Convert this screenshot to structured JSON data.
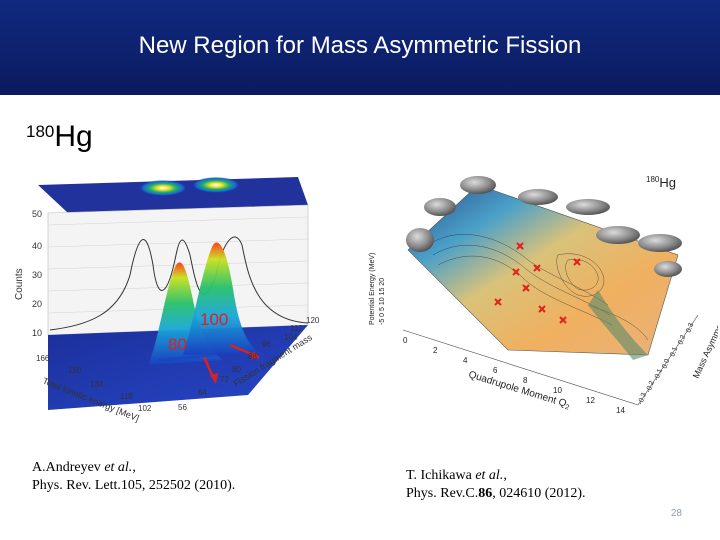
{
  "slide": {
    "title": "New Region for Mass Asymmetric Fission",
    "isotope_mass": "180",
    "isotope_symbol": "Hg",
    "page_number": "28"
  },
  "left_figure": {
    "yaxis_label": "Counts",
    "yaxis_ticks": [
      "50",
      "40",
      "30",
      "20",
      "10"
    ],
    "xaxis_label": "Total kinetic energy [MeV]",
    "xaxis_ticks": [
      "166",
      "150",
      "134",
      "118",
      "102"
    ],
    "mass_axis_label": "Fission fragment mass",
    "mass_ticks": [
      "120",
      "112",
      "104",
      "96",
      "88",
      "80",
      "72",
      "64",
      "56"
    ],
    "peak_label_100": "100",
    "peak_label_80": "80",
    "colors": {
      "arrow": "#e0201b",
      "label": "#e0201b"
    }
  },
  "right_figure": {
    "isotope_mass": "180",
    "isotope_symbol": "Hg",
    "energy_axis_label": "Potential Energy (MeV)",
    "energy_ticks": "-5 0 5 10 15 20",
    "quad_label": "Quadrupole Moment Q",
    "quad_sub": "2",
    "quad_ticks": [
      "0",
      "2",
      "4",
      "6",
      "8",
      "10",
      "12",
      "14"
    ],
    "asym_label": "Mass Asymmetry",
    "asym_ticks": [
      "0.3",
      "0.2",
      "0.1",
      "0.0",
      "-0.1",
      "-0.2",
      "-0.3"
    ]
  },
  "references": {
    "left_line1_author": "A.Andreyev ",
    "left_line1_etal": "et al.",
    "left_line1_tail": ",",
    "left_line2": "Phys. Rev. Lett.105, 252502 (2010).",
    "right_line1_author": "T. Ichikawa ",
    "right_line1_etal": "et al.",
    "right_line1_tail": ",",
    "right_line2_pre": "Phys. Rev.C.",
    "right_line2_bold": "86",
    "right_line2_post": ",  024610 (2012)."
  }
}
